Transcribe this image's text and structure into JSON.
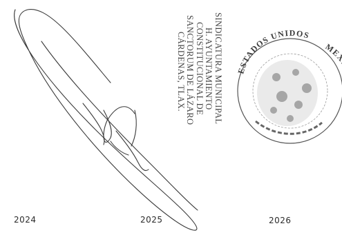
{
  "document": {
    "years": [
      "2024",
      "2025",
      "2026"
    ],
    "stamp_municipal": {
      "lines": [
        "SINDICATURA MUNICIPAL",
        "H. AYUNTAMIENTO",
        "CONSTITUCIONAL DE",
        "SANCTORUM DE LÁZARO",
        "CÁRDENAS, TLAX."
      ]
    },
    "seal": {
      "top_text": "ESTADOS UNIDOS",
      "side_text": "MEXICANOS"
    },
    "signature": "handwritten signature",
    "ink_color": "#2b2b2b"
  }
}
